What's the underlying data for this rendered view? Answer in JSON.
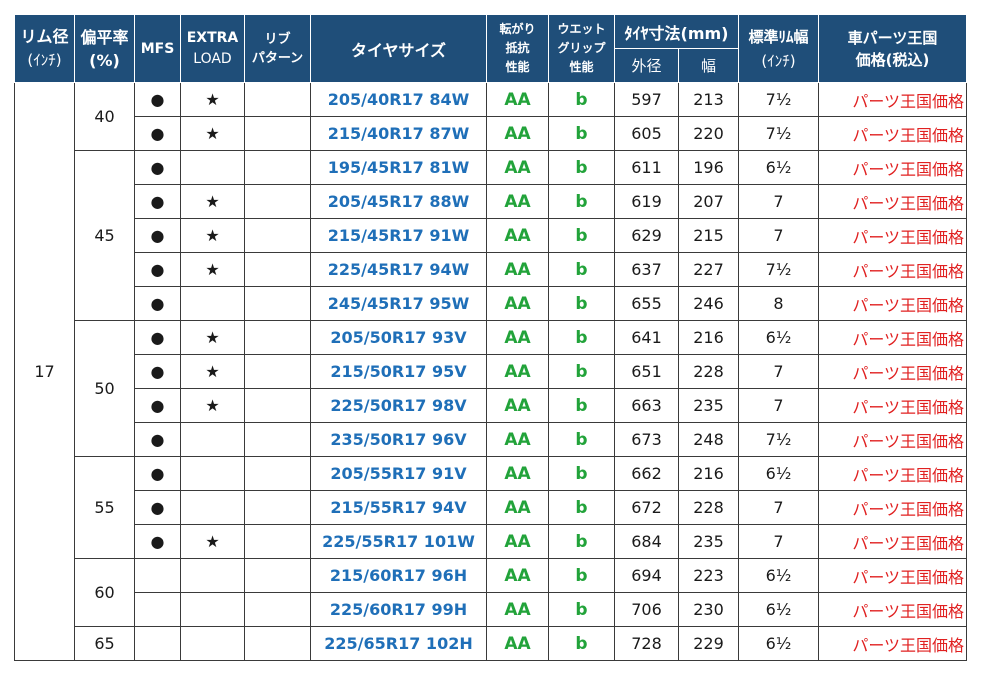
{
  "header": {
    "rim": [
      "リム径",
      "(ｲﾝﾁ)"
    ],
    "aspect": [
      "偏平率",
      "(%)"
    ],
    "mfs": "MFS",
    "extra_load": [
      "EXTRA",
      "LOAD"
    ],
    "rib_pattern": [
      "リブ",
      "パターン"
    ],
    "tire_size": "タイヤサイズ",
    "rolling": [
      "転がり",
      "抵抗",
      "性能"
    ],
    "wet": [
      "ウエット",
      "グリップ",
      "性能"
    ],
    "dimension": "ﾀｲﾔ寸法(mm)",
    "outer": "外径",
    "width": "幅",
    "std_rim": [
      "標準ﾘﾑ幅",
      "(ｲﾝﾁ)"
    ],
    "price": [
      "車パーツ王国",
      "価格(税込)"
    ]
  },
  "rim_value": "17",
  "groups": [
    {
      "aspect": "40",
      "rows": [
        {
          "mfs": "●",
          "el": "★",
          "rib": "",
          "size": "205/40R17 84W",
          "roll": "AA",
          "wet": "b",
          "outer": "597",
          "width": "213",
          "rim": "7½",
          "price": "パーツ王国価格"
        },
        {
          "mfs": "●",
          "el": "★",
          "rib": "",
          "size": "215/40R17 87W",
          "roll": "AA",
          "wet": "b",
          "outer": "605",
          "width": "220",
          "rim": "7½",
          "price": "パーツ王国価格"
        }
      ]
    },
    {
      "aspect": "45",
      "rows": [
        {
          "mfs": "●",
          "el": "",
          "rib": "",
          "size": "195/45R17 81W",
          "roll": "AA",
          "wet": "b",
          "outer": "611",
          "width": "196",
          "rim": "6½",
          "price": "パーツ王国価格"
        },
        {
          "mfs": "●",
          "el": "★",
          "rib": "",
          "size": "205/45R17 88W",
          "roll": "AA",
          "wet": "b",
          "outer": "619",
          "width": "207",
          "rim": "7",
          "price": "パーツ王国価格"
        },
        {
          "mfs": "●",
          "el": "★",
          "rib": "",
          "size": "215/45R17 91W",
          "roll": "AA",
          "wet": "b",
          "outer": "629",
          "width": "215",
          "rim": "7",
          "price": "パーツ王国価格"
        },
        {
          "mfs": "●",
          "el": "★",
          "rib": "",
          "size": "225/45R17 94W",
          "roll": "AA",
          "wet": "b",
          "outer": "637",
          "width": "227",
          "rim": "7½",
          "price": "パーツ王国価格"
        },
        {
          "mfs": "●",
          "el": "",
          "rib": "",
          "size": "245/45R17 95W",
          "roll": "AA",
          "wet": "b",
          "outer": "655",
          "width": "246",
          "rim": "8",
          "price": "パーツ王国価格"
        }
      ]
    },
    {
      "aspect": "50",
      "rows": [
        {
          "mfs": "●",
          "el": "★",
          "rib": "",
          "size": "205/50R17 93V",
          "roll": "AA",
          "wet": "b",
          "outer": "641",
          "width": "216",
          "rim": "6½",
          "price": "パーツ王国価格"
        },
        {
          "mfs": "●",
          "el": "★",
          "rib": "",
          "size": "215/50R17 95V",
          "roll": "AA",
          "wet": "b",
          "outer": "651",
          "width": "228",
          "rim": "7",
          "price": "パーツ王国価格"
        },
        {
          "mfs": "●",
          "el": "★",
          "rib": "",
          "size": "225/50R17 98V",
          "roll": "AA",
          "wet": "b",
          "outer": "663",
          "width": "235",
          "rim": "7",
          "price": "パーツ王国価格"
        },
        {
          "mfs": "●",
          "el": "",
          "rib": "",
          "size": "235/50R17 96V",
          "roll": "AA",
          "wet": "b",
          "outer": "673",
          "width": "248",
          "rim": "7½",
          "price": "パーツ王国価格"
        }
      ]
    },
    {
      "aspect": "55",
      "rows": [
        {
          "mfs": "●",
          "el": "",
          "rib": "",
          "size": "205/55R17 91V",
          "roll": "AA",
          "wet": "b",
          "outer": "662",
          "width": "216",
          "rim": "6½",
          "price": "パーツ王国価格"
        },
        {
          "mfs": "●",
          "el": "",
          "rib": "",
          "size": "215/55R17 94V",
          "roll": "AA",
          "wet": "b",
          "outer": "672",
          "width": "228",
          "rim": "7",
          "price": "パーツ王国価格"
        },
        {
          "mfs": "●",
          "el": "★",
          "rib": "",
          "size": "225/55R17 101W",
          "roll": "AA",
          "wet": "b",
          "outer": "684",
          "width": "235",
          "rim": "7",
          "price": "パーツ王国価格"
        }
      ]
    },
    {
      "aspect": "60",
      "rows": [
        {
          "mfs": "",
          "el": "",
          "rib": "",
          "size": "215/60R17 96H",
          "roll": "AA",
          "wet": "b",
          "outer": "694",
          "width": "223",
          "rim": "6½",
          "price": "パーツ王国価格"
        },
        {
          "mfs": "",
          "el": "",
          "rib": "",
          "size": "225/60R17 99H",
          "roll": "AA",
          "wet": "b",
          "outer": "706",
          "width": "230",
          "rim": "6½",
          "price": "パーツ王国価格"
        }
      ]
    },
    {
      "aspect": "65",
      "rows": [
        {
          "mfs": "",
          "el": "",
          "rib": "",
          "size": "225/65R17 102H",
          "roll": "AA",
          "wet": "b",
          "outer": "728",
          "width": "229",
          "rim": "6½",
          "price": "パーツ王国価格"
        }
      ]
    }
  ]
}
